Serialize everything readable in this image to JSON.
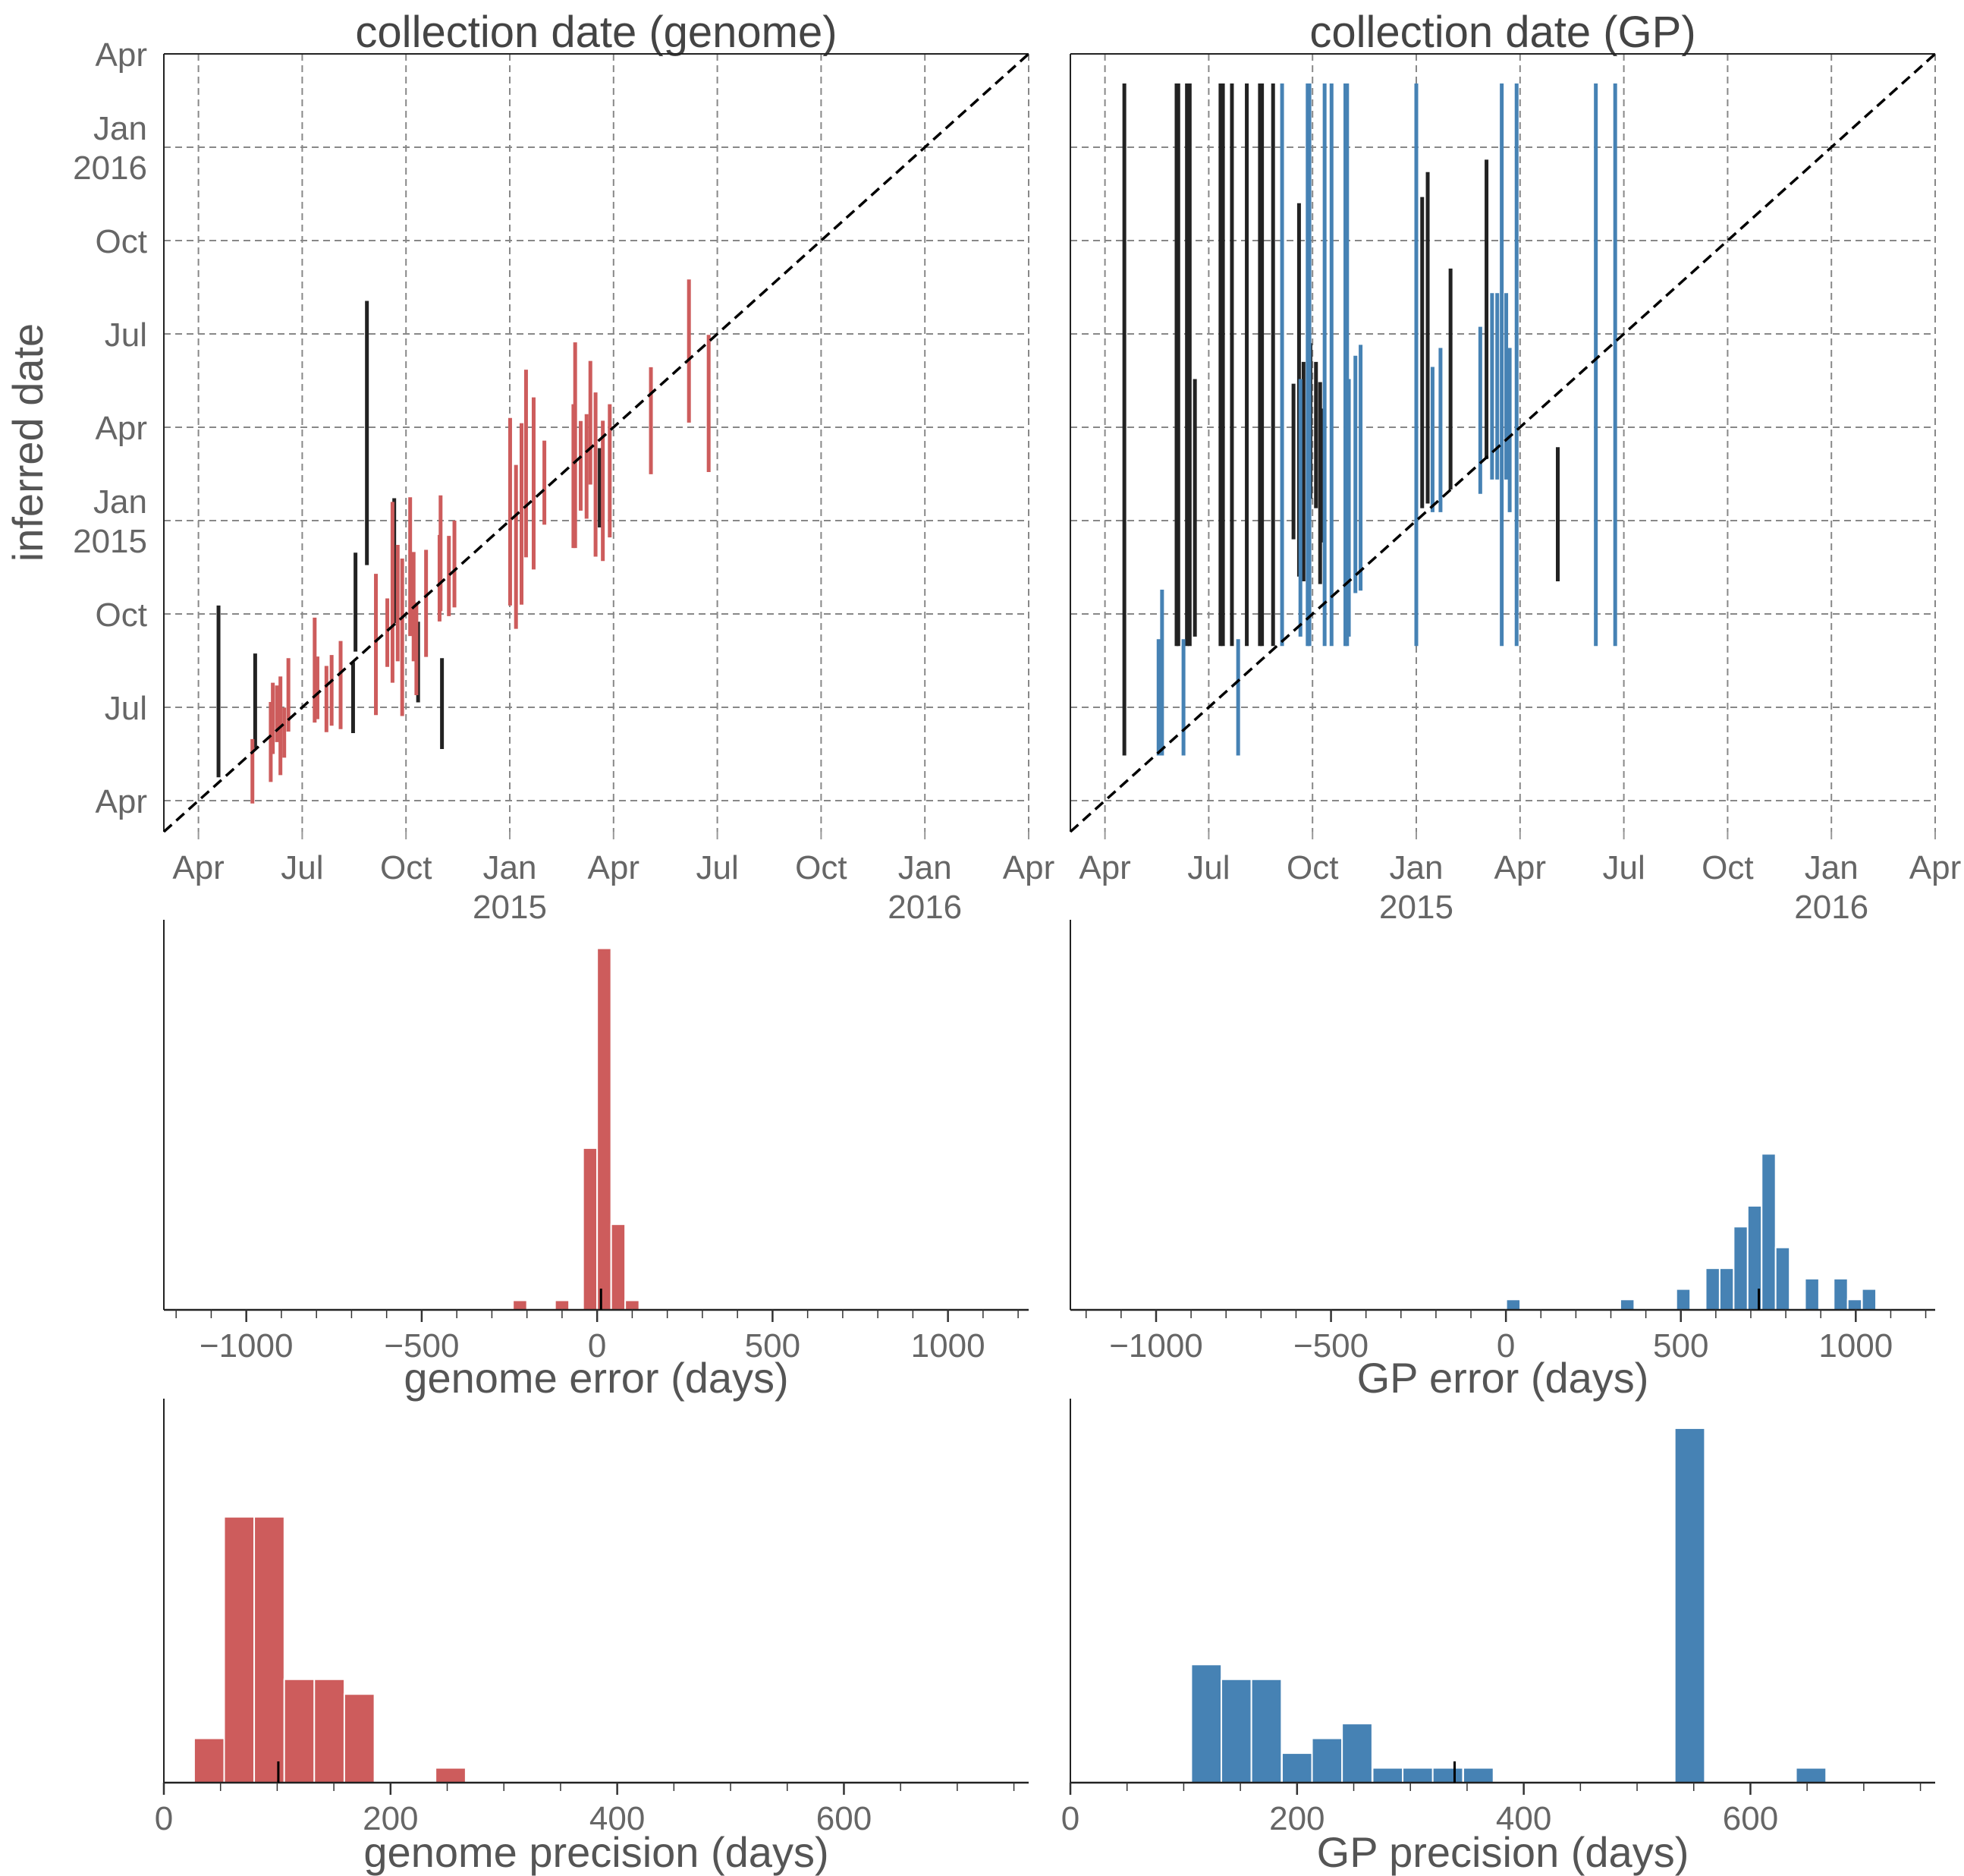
{
  "colors": {
    "genome": "#cd5c5c",
    "gp": "#4682b4",
    "outlier": "#222222",
    "grid": "#888888"
  },
  "chart_data": [
    {
      "id": "scatter-genome",
      "type": "errorbar",
      "title": "collection date (genome)",
      "xlabel": "",
      "ylabel": "inferred date",
      "xlim": [
        -1,
        24
      ],
      "ylim": [
        -1,
        24
      ],
      "ticks": [
        0,
        3,
        6,
        9,
        12,
        15,
        18,
        21,
        24
      ],
      "tick_labels": [
        [
          "Apr"
        ],
        [
          "Jul"
        ],
        [
          "Oct"
        ],
        [
          "Jan",
          "2015"
        ],
        [
          "Apr"
        ],
        [
          "Jul"
        ],
        [
          "Oct"
        ],
        [
          "Jan",
          "2016"
        ],
        [
          "Apr"
        ]
      ],
      "grid": true,
      "diagonal": true,
      "series": [
        {
          "color_key": "outlier",
          "bars": [
            [
              0.58,
              0.75,
              6.27
            ],
            [
              1.64,
              1.69,
              4.73
            ],
            [
              4.47,
              2.17,
              4.45
            ],
            [
              4.54,
              4.79,
              7.97
            ],
            [
              4.87,
              7.57,
              16.06
            ],
            [
              5.66,
              5.7,
              9.72
            ],
            [
              6.35,
              3.16,
              5.75
            ],
            [
              7.04,
              1.66,
              4.58
            ],
            [
              11.6,
              8.78,
              11.33
            ]
          ]
        },
        {
          "color_key": "genome",
          "bars": [
            [
              1.56,
              -0.09,
              1.98
            ],
            [
              2.09,
              0.6,
              3.17
            ],
            [
              2.15,
              1.5,
              3.79
            ],
            [
              2.27,
              1.88,
              3.7
            ],
            [
              2.37,
              0.82,
              3.99
            ],
            [
              2.48,
              1.38,
              2.99
            ],
            [
              2.6,
              2.22,
              4.58
            ],
            [
              3.36,
              2.51,
              5.88
            ],
            [
              3.44,
              2.62,
              4.63
            ],
            [
              3.7,
              2.2,
              4.33
            ],
            [
              3.85,
              2.41,
              4.68
            ],
            [
              4.11,
              2.3,
              5.13
            ],
            [
              5.13,
              2.75,
              7.29
            ],
            [
              5.46,
              4.3,
              6.5
            ],
            [
              5.61,
              3.79,
              9.6
            ],
            [
              5.76,
              4.48,
              8.22
            ],
            [
              5.89,
              2.72,
              7.78
            ],
            [
              6.12,
              5.29,
              9.75
            ],
            [
              6.22,
              4.48,
              7.99
            ],
            [
              6.3,
              3.39,
              6.37
            ],
            [
              6.58,
              4.62,
              8.06
            ],
            [
              6.97,
              5.76,
              8.54
            ],
            [
              7.0,
              6.09,
              9.81
            ],
            [
              7.24,
              5.93,
              8.51
            ],
            [
              7.4,
              6.21,
              9.0
            ],
            [
              9.01,
              6.27,
              12.3
            ],
            [
              9.18,
              5.52,
              10.79
            ],
            [
              9.34,
              6.3,
              12.13
            ],
            [
              9.47,
              7.82,
              13.85
            ],
            [
              9.69,
              7.43,
              12.96
            ],
            [
              10.0,
              8.87,
              11.57
            ],
            [
              10.84,
              8.12,
              12.74
            ],
            [
              10.89,
              8.12,
              14.73
            ],
            [
              11.05,
              9.32,
              12.2
            ],
            [
              11.22,
              9.06,
              12.42
            ],
            [
              11.33,
              10.16,
              14.13
            ],
            [
              11.48,
              7.84,
              13.12
            ],
            [
              11.69,
              7.7,
              12.21
            ],
            [
              11.89,
              8.46,
              12.74
            ],
            [
              13.08,
              10.49,
              13.93
            ],
            [
              14.18,
              12.15,
              16.75
            ],
            [
              14.75,
              10.56,
              14.97
            ]
          ]
        }
      ]
    },
    {
      "id": "scatter-gp",
      "type": "errorbar",
      "title": "collection date (GP)",
      "xlabel": "",
      "ylabel": "",
      "xlim": [
        -1,
        24
      ],
      "ylim": [
        -1,
        24
      ],
      "ticks": [
        0,
        3,
        6,
        9,
        12,
        15,
        18,
        21,
        24
      ],
      "tick_labels": [
        [
          "Apr"
        ],
        [
          "Jul"
        ],
        [
          "Oct"
        ],
        [
          "Jan",
          "2015"
        ],
        [
          "Apr"
        ],
        [
          "Jul"
        ],
        [
          "Oct"
        ],
        [
          "Jan",
          "2016"
        ],
        [
          "Apr"
        ]
      ],
      "grid": true,
      "diagonal": true,
      "series": [
        {
          "color_key": "outlier",
          "bars": [
            [
              0.56,
              1.45,
              23.05
            ],
            [
              2.07,
              4.97,
              23.05
            ],
            [
              2.12,
              4.97,
              23.05
            ],
            [
              2.37,
              4.97,
              23.05
            ],
            [
              2.45,
              4.97,
              23.05
            ],
            [
              2.6,
              5.27,
              13.55
            ],
            [
              3.34,
              4.97,
              23.05
            ],
            [
              3.41,
              4.97,
              23.05
            ],
            [
              3.67,
              4.97,
              23.05
            ],
            [
              4.1,
              4.97,
              23.05
            ],
            [
              4.48,
              4.97,
              23.05
            ],
            [
              4.54,
              4.97,
              23.05
            ],
            [
              4.86,
              4.97,
              23.05
            ],
            [
              5.45,
              8.4,
              13.4
            ],
            [
              5.61,
              7.2,
              19.2
            ],
            [
              5.74,
              7.05,
              14.1
            ],
            [
              5.94,
              9.7,
              14.7
            ],
            [
              6.1,
              9.4,
              14.1
            ],
            [
              6.22,
              6.96,
              13.45
            ],
            [
              6.27,
              8.3,
              12.6
            ],
            [
              9.17,
              9.4,
              19.4
            ],
            [
              9.33,
              9.55,
              20.2
            ],
            [
              9.99,
              10.0,
              17.1
            ],
            [
              11.03,
              10.98,
              20.6
            ],
            [
              13.09,
              7.05,
              11.36
            ]
          ]
        },
        {
          "color_key": "gp",
          "bars": [
            [
              1.55,
              1.45,
              5.19
            ],
            [
              1.65,
              1.45,
              6.78
            ],
            [
              2.27,
              1.45,
              5.19
            ],
            [
              3.85,
              1.45,
              5.19
            ],
            [
              5.12,
              4.97,
              23.05
            ],
            [
              5.65,
              5.27,
              13.55
            ],
            [
              5.86,
              4.97,
              23.05
            ],
            [
              5.91,
              4.97,
              23.05
            ],
            [
              6.35,
              4.97,
              23.05
            ],
            [
              6.55,
              4.97,
              23.05
            ],
            [
              6.95,
              4.97,
              23.05
            ],
            [
              7.0,
              4.97,
              23.05
            ],
            [
              7.05,
              5.27,
              13.55
            ],
            [
              7.24,
              6.67,
              14.3
            ],
            [
              7.39,
              6.75,
              14.65
            ],
            [
              9.0,
              4.97,
              23.05
            ],
            [
              9.47,
              9.27,
              13.94
            ],
            [
              9.7,
              9.27,
              14.55
            ],
            [
              10.85,
              9.86,
              15.23
            ],
            [
              11.19,
              10.32,
              16.31
            ],
            [
              11.34,
              10.32,
              16.31
            ],
            [
              11.47,
              4.97,
              23.05
            ],
            [
              11.6,
              10.32,
              16.31
            ],
            [
              11.7,
              9.27,
              14.55
            ],
            [
              11.9,
              4.97,
              23.05
            ],
            [
              14.19,
              4.97,
              23.05
            ],
            [
              14.75,
              4.97,
              23.05
            ]
          ]
        }
      ]
    },
    {
      "id": "hist-genome-error",
      "type": "bar",
      "xlabel": "genome error (days)",
      "color_key": "genome",
      "xlim": [
        -1235,
        1230
      ],
      "ylim": [
        0,
        41
      ],
      "major_ticks": [
        -1000,
        -500,
        0,
        500,
        1000
      ],
      "minor_step": 100,
      "tick_labels": [
        "−1000",
        "−500",
        "0",
        "500",
        "1000"
      ],
      "bin_width": 40,
      "bins": [
        {
          "center": -220,
          "count": 1
        },
        {
          "center": -100,
          "count": 1
        },
        {
          "center": -20,
          "count": 17
        },
        {
          "center": 20,
          "count": 38
        },
        {
          "center": 60,
          "count": 9
        },
        {
          "center": 100,
          "count": 1
        }
      ],
      "median": 11
    },
    {
      "id": "hist-gp-error",
      "type": "bar",
      "xlabel": "GP error (days)",
      "color_key": "gp",
      "xlim": [
        -1245,
        1227
      ],
      "ylim": [
        0,
        37.5
      ],
      "major_ticks": [
        -1000,
        -500,
        0,
        500,
        1000
      ],
      "minor_step": 100,
      "tick_labels": [
        "−1000",
        "−500",
        "0",
        "500",
        "1000"
      ],
      "bin_width": 40,
      "bins": [
        {
          "center": 21,
          "count": 1
        },
        {
          "center": 347,
          "count": 1
        },
        {
          "center": 507,
          "count": 2
        },
        {
          "center": 591,
          "count": 4
        },
        {
          "center": 631,
          "count": 4
        },
        {
          "center": 671,
          "count": 8
        },
        {
          "center": 711,
          "count": 10
        },
        {
          "center": 751,
          "count": 15
        },
        {
          "center": 791,
          "count": 6
        },
        {
          "center": 875,
          "count": 3
        },
        {
          "center": 957,
          "count": 3
        },
        {
          "center": 997,
          "count": 1
        },
        {
          "center": 1038,
          "count": 2
        }
      ],
      "median": 723
    },
    {
      "id": "hist-genome-precision",
      "type": "bar",
      "xlabel": "genome precision (days)",
      "color_key": "genome",
      "xlim": [
        0,
        763
      ],
      "ylim": [
        0,
        26
      ],
      "major_ticks": [
        0,
        200,
        400,
        600
      ],
      "minor_step": 50,
      "tick_labels": [
        "0",
        "200",
        "400",
        "600"
      ],
      "bin_width": 26.6,
      "bins": [
        {
          "center": 40,
          "count": 3
        },
        {
          "center": 66.5,
          "count": 18
        },
        {
          "center": 93,
          "count": 18
        },
        {
          "center": 119.5,
          "count": 7
        },
        {
          "center": 146,
          "count": 7
        },
        {
          "center": 172.5,
          "count": 6
        },
        {
          "center": 253,
          "count": 1
        }
      ],
      "median": 101
    },
    {
      "id": "hist-gp-precision",
      "type": "bar",
      "xlabel": "GP precision (days)",
      "color_key": "gp",
      "xlim": [
        0,
        763
      ],
      "ylim": [
        0,
        26
      ],
      "major_ticks": [
        0,
        200,
        400,
        600
      ],
      "minor_step": 50,
      "tick_labels": [
        "0",
        "200",
        "400",
        "600"
      ],
      "bin_width": 26.6,
      "bins": [
        {
          "center": 120,
          "count": 8
        },
        {
          "center": 146.5,
          "count": 7
        },
        {
          "center": 173,
          "count": 7
        },
        {
          "center": 200,
          "count": 2
        },
        {
          "center": 226.5,
          "count": 3
        },
        {
          "center": 253,
          "count": 4
        },
        {
          "center": 280,
          "count": 1
        },
        {
          "center": 306.5,
          "count": 1
        },
        {
          "center": 333,
          "count": 1
        },
        {
          "center": 360,
          "count": 1
        },
        {
          "center": 546.5,
          "count": 24
        },
        {
          "center": 653.5,
          "count": 1
        }
      ],
      "median": 339
    }
  ]
}
